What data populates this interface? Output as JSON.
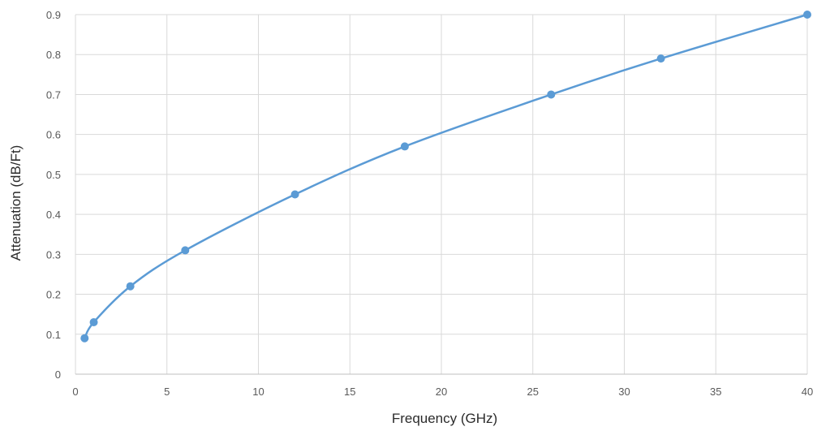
{
  "chart_data": {
    "type": "line",
    "title": "",
    "xlabel": "Frequency (GHz)",
    "ylabel": "Attenuation (dB/Ft)",
    "xlim": [
      0,
      40
    ],
    "ylim": [
      0,
      0.9
    ],
    "x_ticks": [
      0,
      5,
      10,
      15,
      20,
      25,
      30,
      35,
      40
    ],
    "y_ticks": [
      0,
      0.1,
      0.2,
      0.3,
      0.4,
      0.5,
      0.6,
      0.7,
      0.8,
      0.9
    ],
    "grid": true,
    "legend": "none",
    "smooth": true,
    "series": [
      {
        "x": [
          0.5,
          1,
          3,
          6,
          12,
          18,
          26,
          32,
          40
        ],
        "y": [
          0.09,
          0.13,
          0.22,
          0.31,
          0.45,
          0.57,
          0.7,
          0.79,
          0.9
        ],
        "color": "#5b9bd5"
      }
    ],
    "grid_color": "#d9d9d9",
    "axis_color": "#bfbfbf"
  }
}
